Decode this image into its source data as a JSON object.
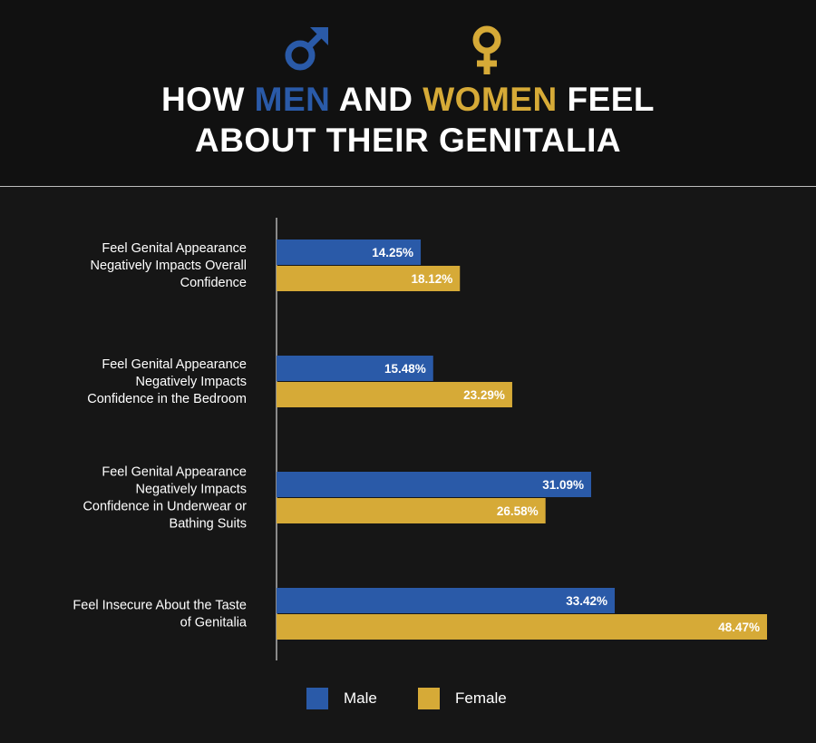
{
  "title": {
    "part1": "HOW ",
    "men": "MEN",
    "part2": " AND ",
    "women": "WOMEN",
    "part3": " FEEL",
    "line2": "ABOUT THEIR GENITALIA"
  },
  "colors": {
    "male": "#2a5aa8",
    "female": "#d6aa37",
    "background": "#161616",
    "text": "#ffffff"
  },
  "icons": {
    "male": "male-symbol-icon",
    "female": "female-symbol-icon"
  },
  "chart_data": {
    "type": "bar",
    "orientation": "horizontal",
    "categories": [
      [
        "Feel Genital Appearance",
        "Negatively Impacts Overall",
        "Confidence"
      ],
      [
        "Feel Genital Appearance",
        "Negatively Impacts",
        "Confidence in the Bedroom"
      ],
      [
        "Feel Genital Appearance",
        "Negatively Impacts",
        "Confidence in Underwear or",
        "Bathing Suits"
      ],
      [
        "Feel Insecure About the Taste",
        "of Genitalia"
      ]
    ],
    "series": [
      {
        "name": "Male",
        "values": [
          14.25,
          15.48,
          31.09,
          33.42
        ]
      },
      {
        "name": "Female",
        "values": [
          18.12,
          23.29,
          26.58,
          48.47
        ]
      }
    ],
    "value_suffix": "%",
    "xlim": [
      0,
      48.47
    ],
    "grid": false,
    "legend_position": "bottom"
  }
}
